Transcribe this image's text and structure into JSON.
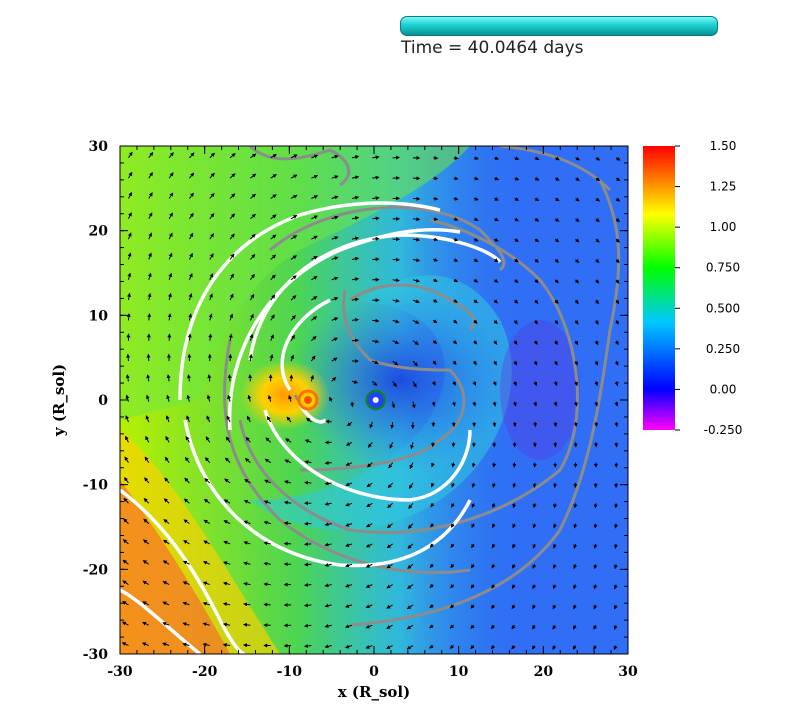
{
  "header": {
    "time_label": "Time = 40.0464 days",
    "progress_fraction": 1.0,
    "progress_color": "#22d6d6"
  },
  "chart_data": {
    "type": "heatmap",
    "title": "",
    "xlabel": "x (R_sol)",
    "ylabel": "y (R_sol)",
    "xlim": [
      -30,
      30
    ],
    "ylim": [
      -30,
      30
    ],
    "x_ticks": [
      -30,
      -20,
      -10,
      0,
      10,
      20,
      30
    ],
    "y_ticks": [
      30,
      20,
      10,
      0,
      -10,
      -20,
      -30
    ],
    "x_tick_labels": [
      "-30",
      "-20",
      "-10",
      "0",
      "10",
      "20",
      "30"
    ],
    "y_tick_labels": [
      "30",
      "20",
      "10",
      "0",
      "-10",
      "-20",
      "-30"
    ],
    "colorbar": {
      "range": [
        -0.25,
        1.5
      ],
      "ticks": [
        1.5,
        1.25,
        1.0,
        0.75,
        0.5,
        0.25,
        0.0,
        -0.25
      ],
      "tick_labels": [
        "1.50",
        "1.25",
        "1.00",
        "0.750",
        "0.500",
        "0.250",
        "0.00",
        "-0.250"
      ],
      "colors": [
        "#ff00ff",
        "#0000ff",
        "#00c8ff",
        "#00ff00",
        "#ffff00",
        "#ff0000"
      ]
    },
    "objects": [
      {
        "name": "left-star",
        "x": -7.8,
        "y": 0.0
      },
      {
        "name": "right-star",
        "x": 0.2,
        "y": 0.0
      }
    ],
    "grid": false,
    "legend": "colorbar-right"
  }
}
